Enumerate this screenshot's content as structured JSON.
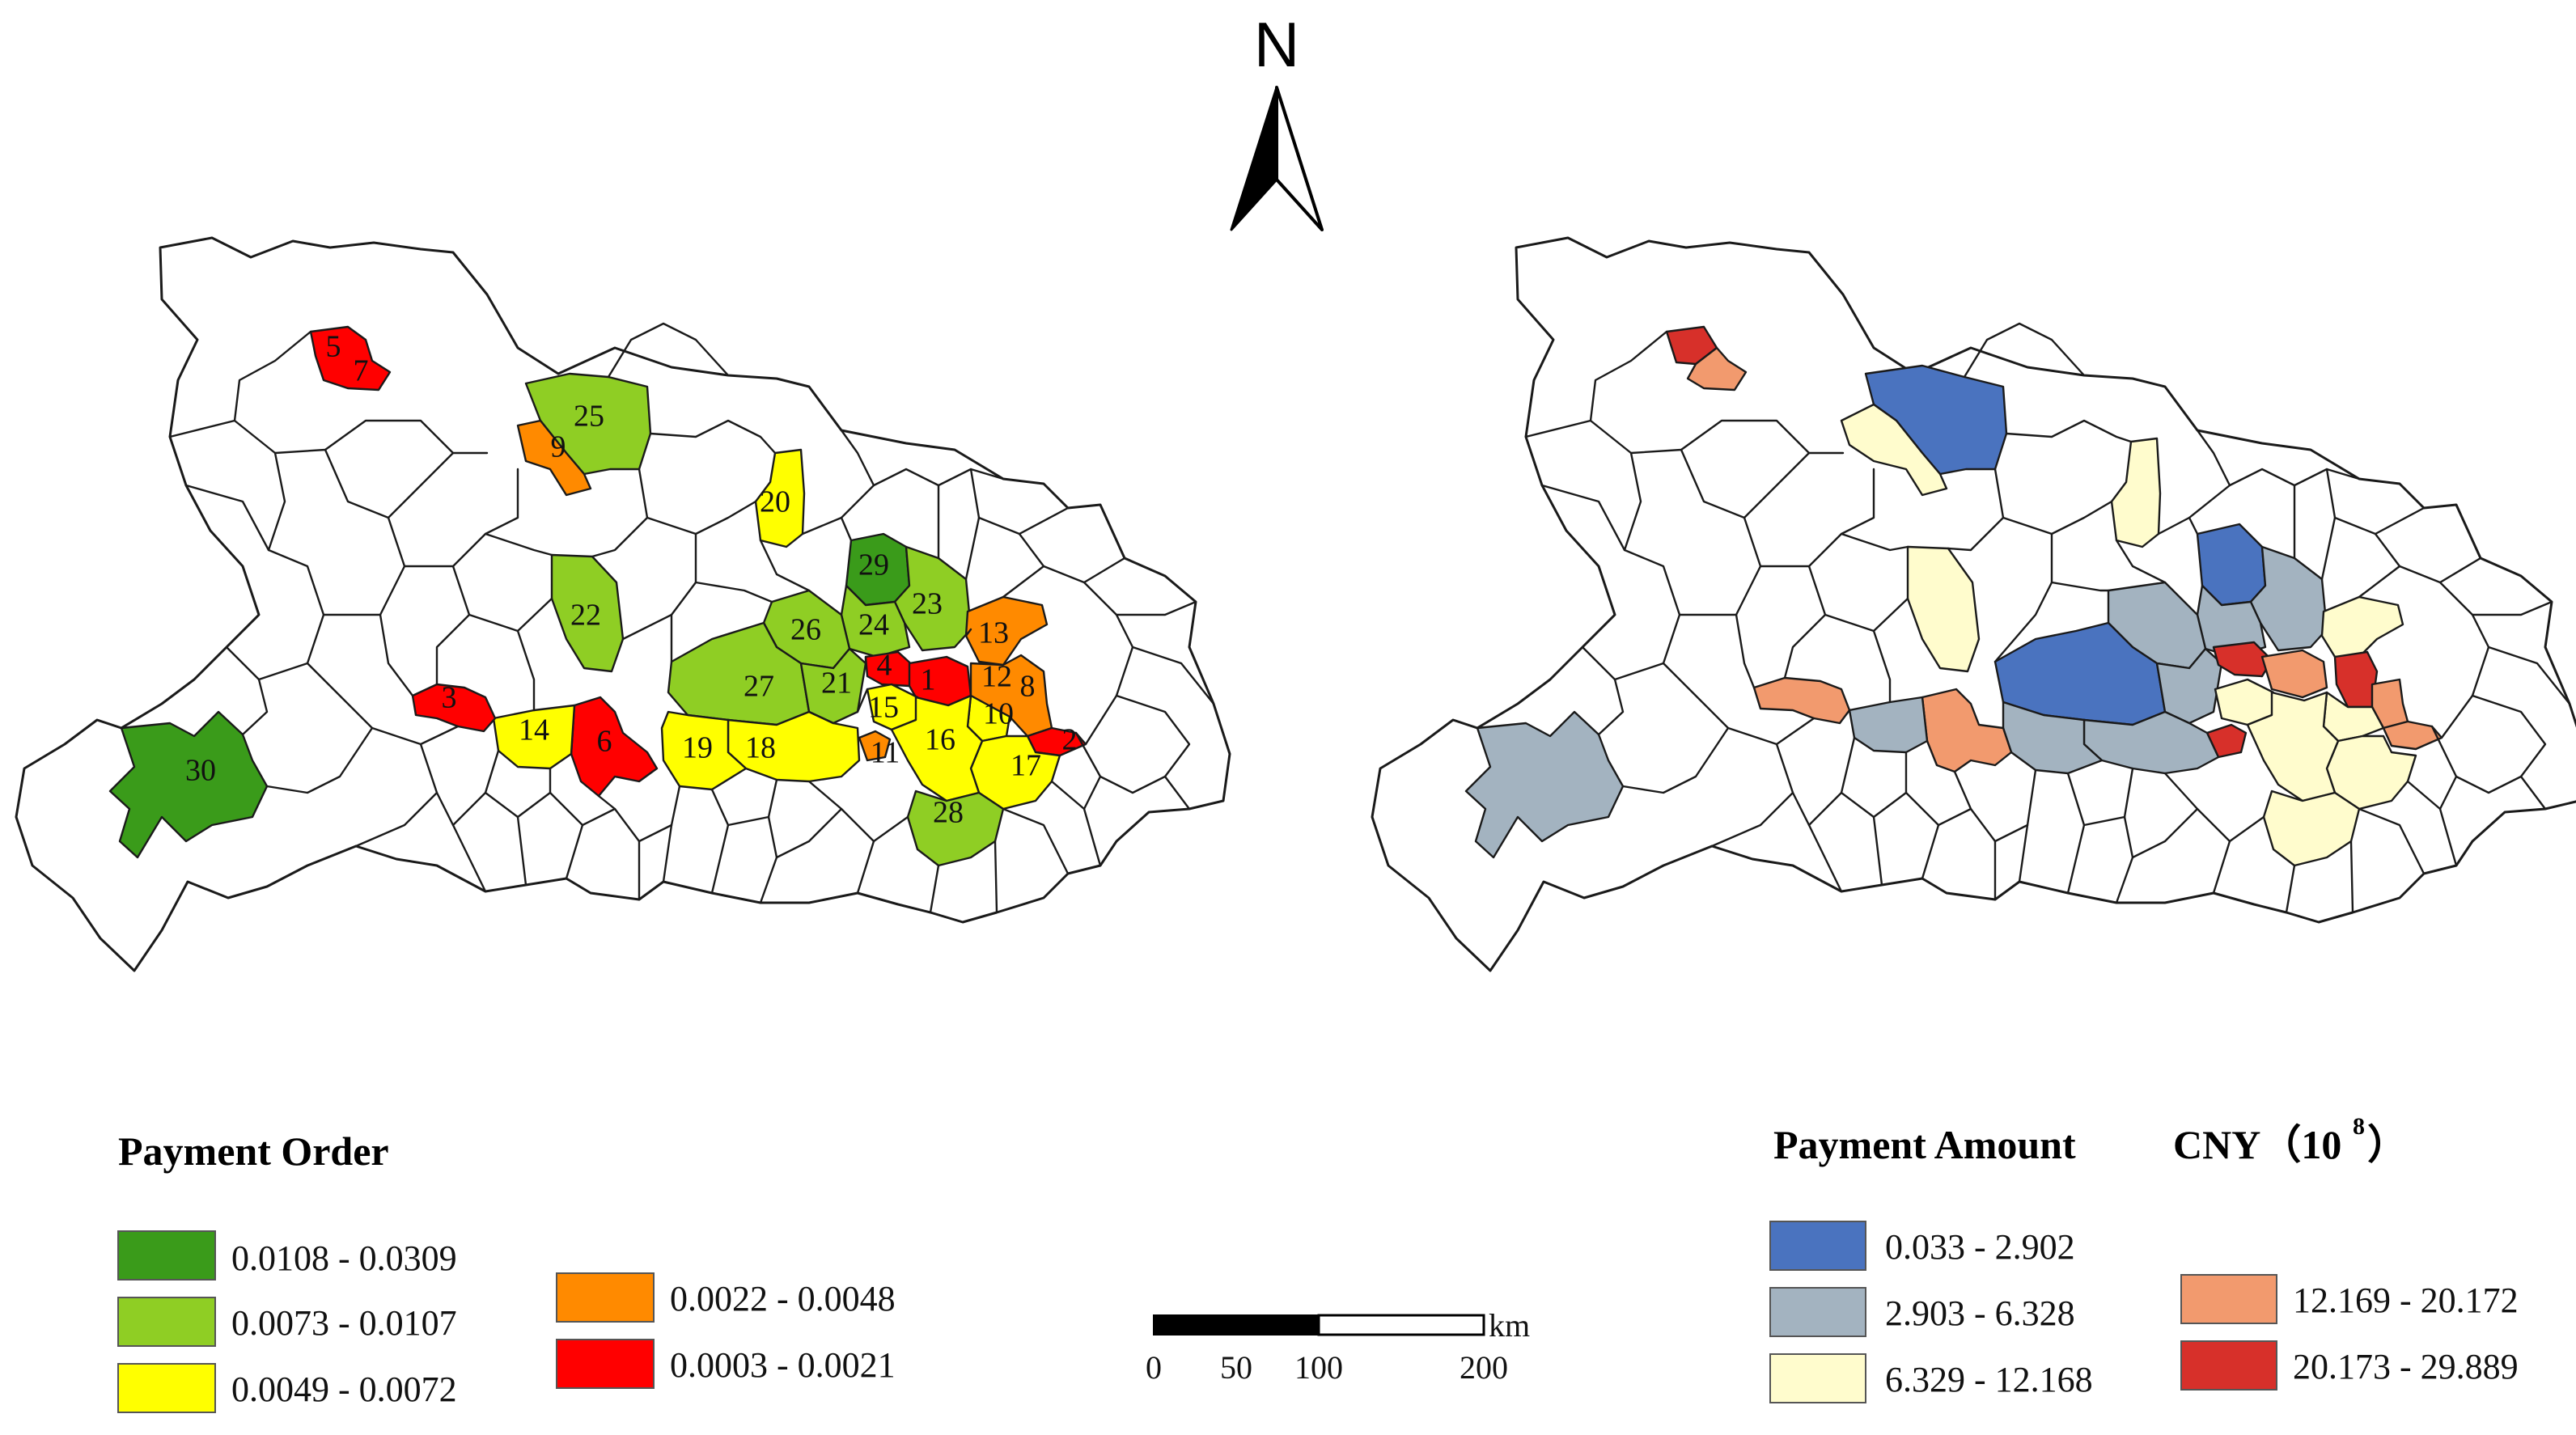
{
  "north_arrow": {
    "letter": "N"
  },
  "left_map": {
    "legend": {
      "title": "Payment Order",
      "classes": [
        {
          "range": "0.0108 - 0.0309",
          "color": "#3a9b1a"
        },
        {
          "range": "0.0073 - 0.0107",
          "color": "#8fce24"
        },
        {
          "range": "0.0049 - 0.0072",
          "color": "#ffff00"
        },
        {
          "range": "0.0022 - 0.0048",
          "color": "#ff8a00"
        },
        {
          "range": "0.0003 - 0.0021",
          "color": "#ff0000"
        }
      ]
    },
    "region_labels": [
      "1",
      "2",
      "3",
      "4",
      "5",
      "6",
      "7",
      "8",
      "9",
      "10",
      "11",
      "12",
      "13",
      "14",
      "15",
      "16",
      "17",
      "18",
      "19",
      "20",
      "21",
      "22",
      "23",
      "24",
      "25",
      "26",
      "27",
      "28",
      "29",
      "30"
    ]
  },
  "right_map": {
    "legend": {
      "title": "Payment Amount",
      "unit": "CNY（10",
      "unit_exp": "8",
      "unit_close": "）",
      "classes": [
        {
          "range": "0.033 - 2.902",
          "color": "#4a73bf"
        },
        {
          "range": "2.903 - 6.328",
          "color": "#a3b3c0"
        },
        {
          "range": "6.329 - 12.168",
          "color": "#fffccd"
        },
        {
          "range": "12.169 - 20.172",
          "color": "#f29a6e"
        },
        {
          "range": "20.173 - 29.889",
          "color": "#d7302a"
        }
      ]
    }
  },
  "scale_bar": {
    "unit": "km",
    "ticks": [
      "0",
      "50",
      "100",
      "200"
    ]
  }
}
